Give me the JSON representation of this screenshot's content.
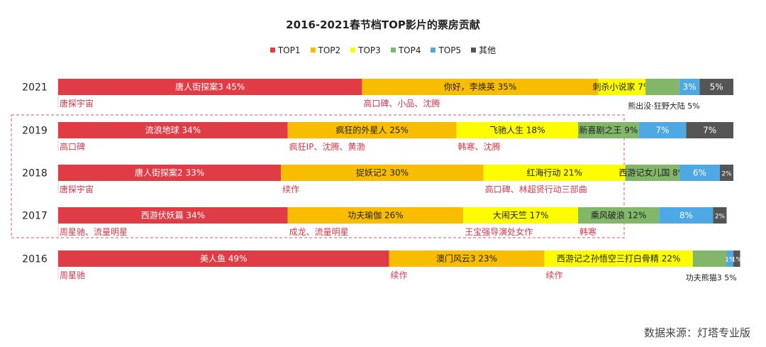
{
  "title": "2016-2021春节档TOP影片的票房贡献",
  "source": "数据来源：灯塔专业版",
  "colors": {
    "TOP1": "#e03c46",
    "TOP2": "#f8bd00",
    "TOP3": "#fdfd00",
    "TOP4": "#82b769",
    "TOP5": "#4ea8e3",
    "other": "#555555",
    "note": "#d6394b",
    "highlight_box": "#e05560"
  },
  "legend": [
    "TOP1",
    "TOP2",
    "TOP3",
    "TOP4",
    "TOP5",
    "其他"
  ],
  "chart_data": {
    "type": "bar",
    "orientation": "horizontal-stacked-100",
    "categories": [
      "2021",
      "2019",
      "2018",
      "2017",
      "2016"
    ],
    "highlighted_categories": [
      "2019",
      "2018",
      "2017"
    ],
    "series": [
      {
        "name": "TOP1",
        "values": [
          45,
          34,
          33,
          34,
          49
        ],
        "labels": [
          "唐人街探案3 45%",
          "流浪地球 34%",
          "唐人街探案2 33%",
          "西游伏妖篇 34%",
          "美人鱼 49%"
        ],
        "notes": [
          "唐探宇宙",
          "高口碑",
          "唐探宇宙",
          "周星驰、流量明星",
          "周星驰"
        ]
      },
      {
        "name": "TOP2",
        "values": [
          35,
          25,
          30,
          26,
          23
        ],
        "labels": [
          "你好，李焕英 35%",
          "疯狂的外星人 25%",
          "捉妖记2 30%",
          "功夫瑜伽 26%",
          "澳门风云3 23%"
        ],
        "notes": [
          "高口碑、小品、沈腾",
          "疯狂IP、沈腾、黄渤",
          "续作",
          "成龙、流量明星",
          "续作"
        ]
      },
      {
        "name": "TOP3",
        "values": [
          7,
          18,
          21,
          17,
          22
        ],
        "labels": [
          "刺杀小说家 7%",
          "飞驰人生 18%",
          "红海行动 21%",
          "大闹天竺 17%",
          "西游记之孙悟空三打白骨精 22%"
        ],
        "notes": [
          "",
          "韩寒、沈腾",
          "高口碑、林超贤行动三部曲",
          "王宝强导演处女作",
          "续作"
        ]
      },
      {
        "name": "TOP4",
        "values": [
          5,
          9,
          8,
          12,
          5
        ],
        "labels": [
          "",
          "新喜剧之王 9%",
          "西游记女儿国 8%",
          "乘风破浪 12%",
          ""
        ],
        "notes": [
          "",
          "",
          "",
          "韩寒",
          ""
        ],
        "outside_labels": [
          "熊出没·狂野大陆 5%",
          "",
          "",
          "",
          "功夫熊猫3 5%"
        ]
      },
      {
        "name": "TOP5",
        "values": [
          3,
          7,
          6,
          8,
          1
        ],
        "labels": [
          "3%",
          "7%",
          "6%",
          "8%",
          "1%"
        ],
        "notes": [
          "",
          "",
          "",
          "",
          ""
        ]
      },
      {
        "name": "其他",
        "values": [
          5,
          7,
          2,
          2,
          1
        ],
        "labels": [
          "5%",
          "7%",
          "2%",
          "2%",
          "1%"
        ],
        "notes": [
          "",
          "",
          "",
          "",
          ""
        ]
      }
    ]
  }
}
